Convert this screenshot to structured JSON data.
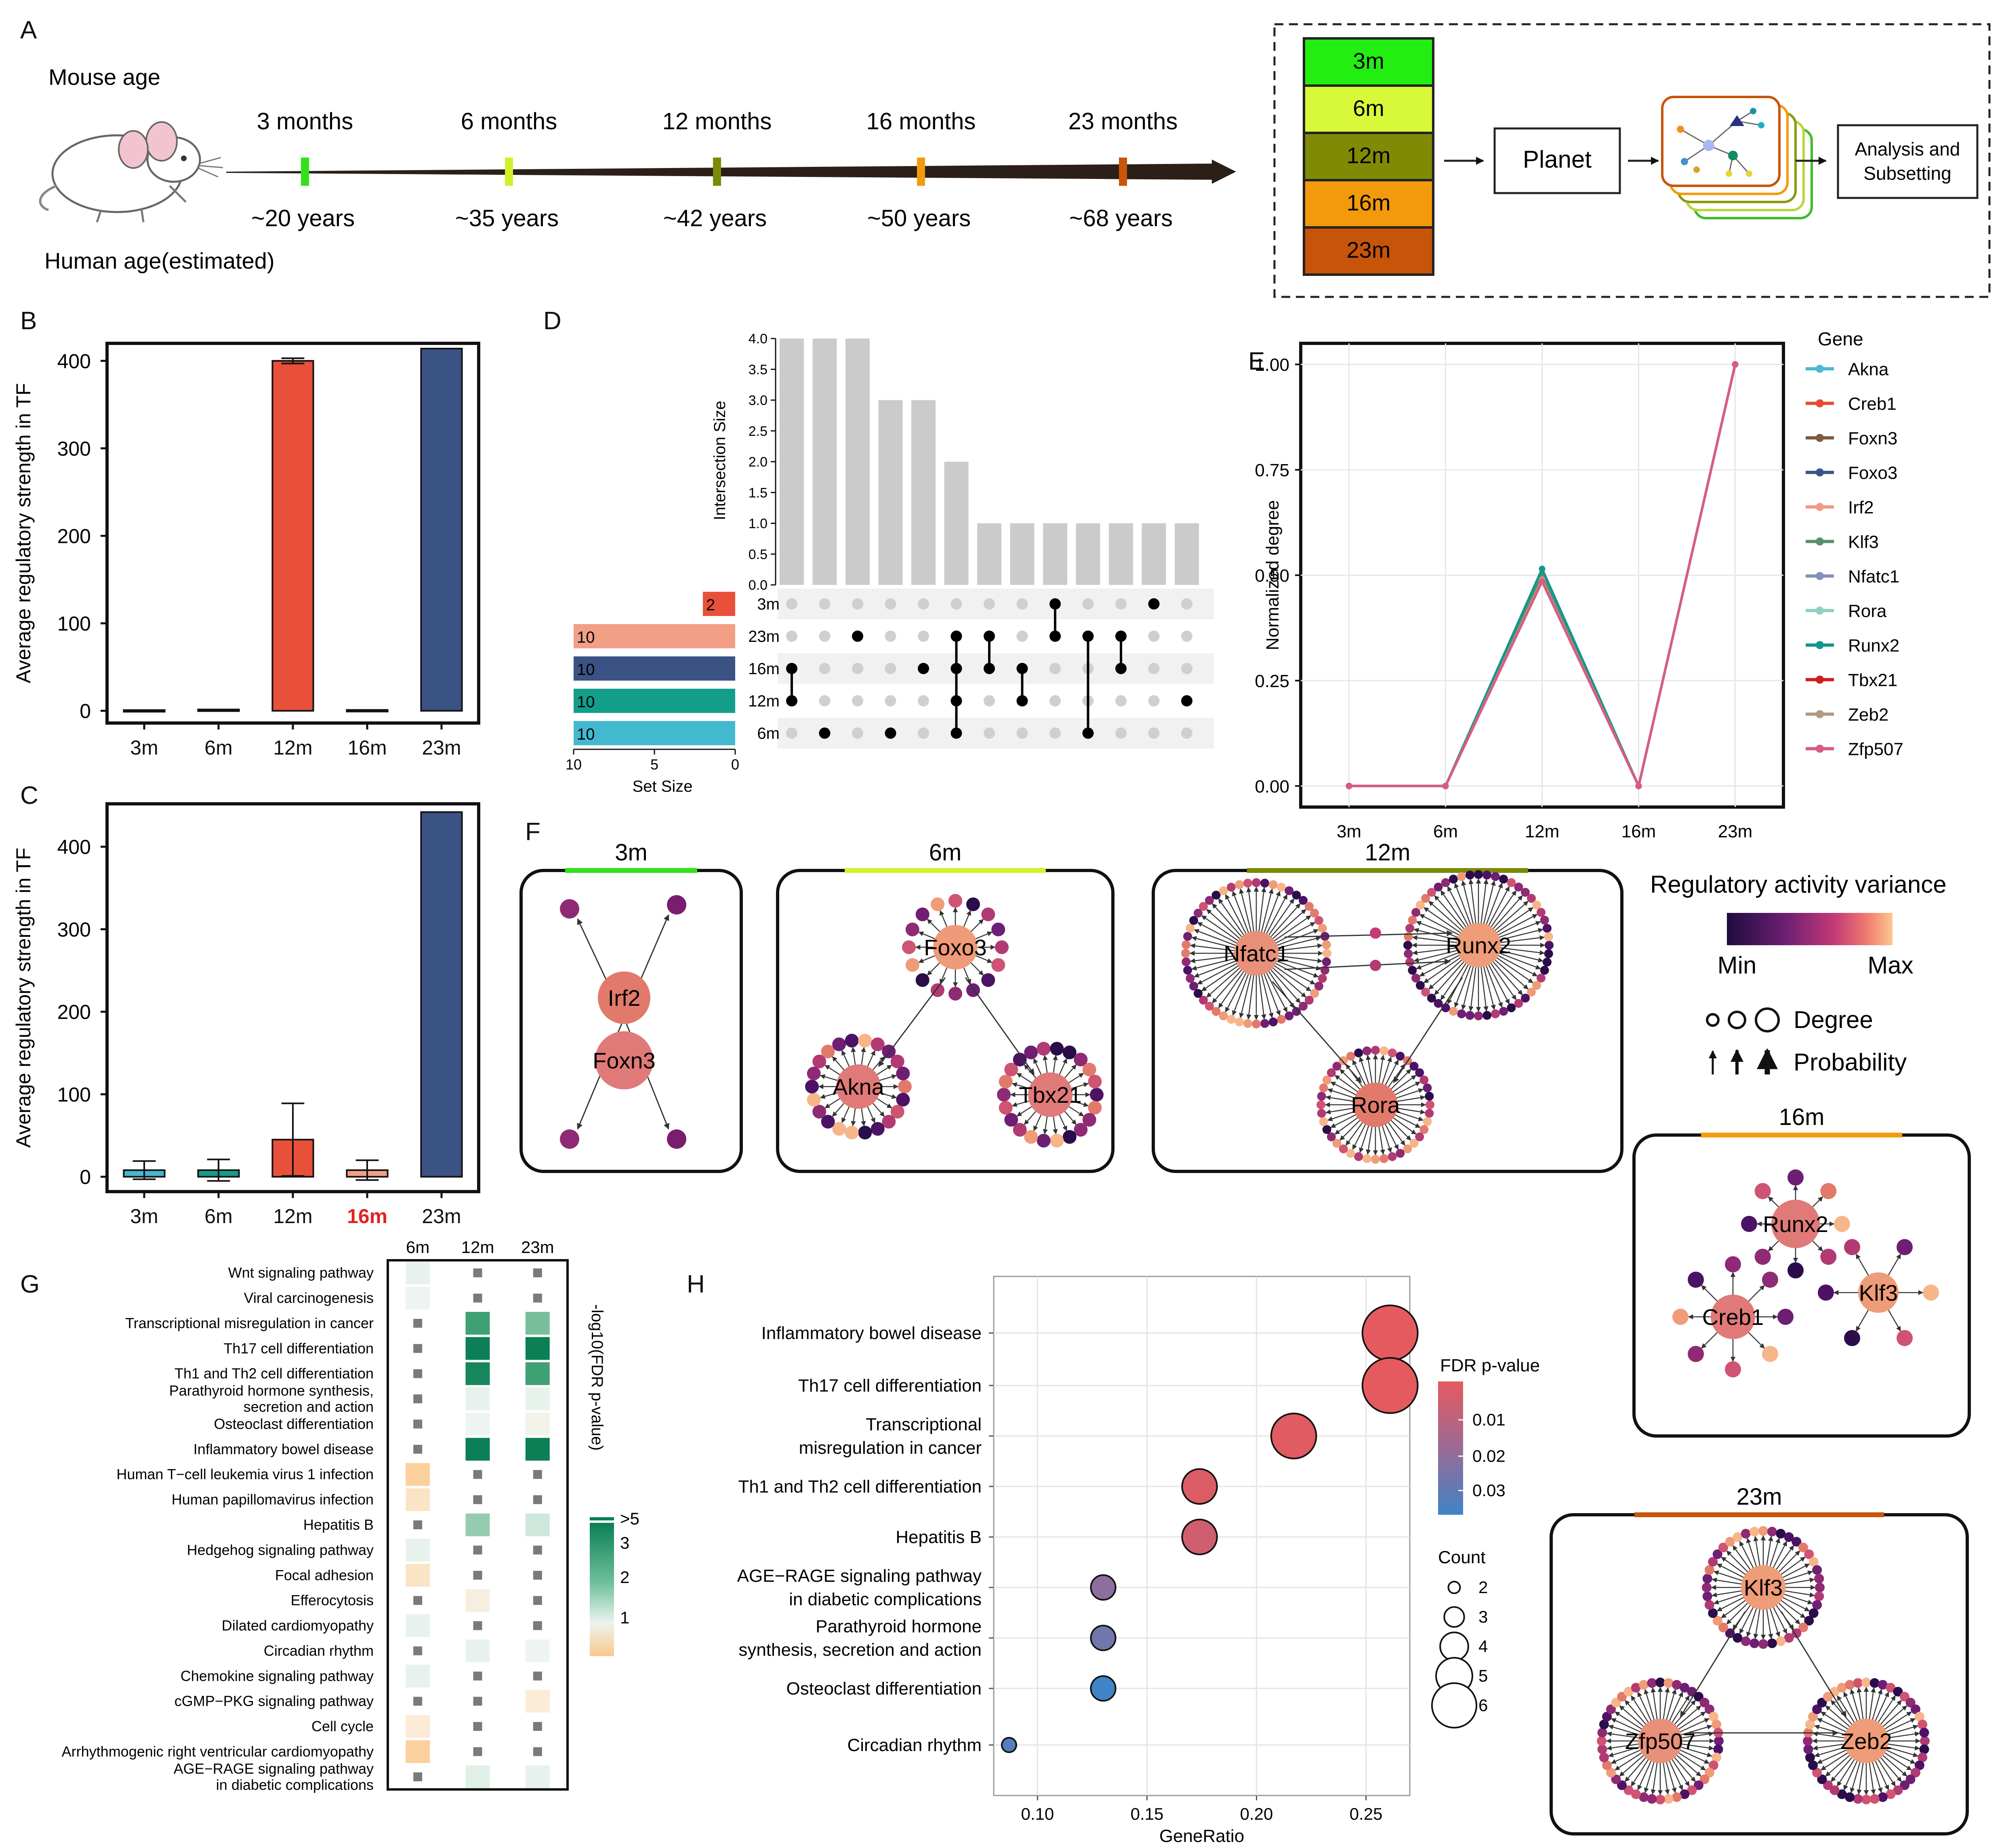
{
  "panel_labels": {
    "a": "A",
    "b": "B",
    "c": "C",
    "d": "D",
    "e": "E",
    "f": "F",
    "g": "G",
    "h": "H"
  },
  "panel_a": {
    "mouse_age_label": "Mouse age",
    "human_age_label": "Human age(estimated)",
    "timepoints": [
      {
        "mouse": "3 months",
        "human": "~20 years",
        "color": "#33e11b"
      },
      {
        "mouse": "6 months",
        "human": "~35 years",
        "color": "#d4f02a"
      },
      {
        "mouse": "12 months",
        "human": "~42 years",
        "color": "#7a8a06"
      },
      {
        "mouse": "16 months",
        "human": "~50 years",
        "color": "#f29b10"
      },
      {
        "mouse": "23 months",
        "human": "~68 years",
        "color": "#c8550a"
      }
    ],
    "pipeline": {
      "stack": [
        {
          "label": "3m",
          "color": "#22ee11"
        },
        {
          "label": "6m",
          "color": "#d8f83a"
        },
        {
          "label": "12m",
          "color": "#808a05"
        },
        {
          "label": "16m",
          "color": "#f39a0c"
        },
        {
          "label": "23m",
          "color": "#c8540a"
        }
      ],
      "planet_label": "Planet",
      "analysis_label_1": "Analysis and",
      "analysis_label_2": "Subsetting"
    }
  },
  "chart_data": [
    {
      "id": "B",
      "type": "bar",
      "title": "",
      "xlabel": "",
      "ylabel": "Average regulatory strength in TF",
      "categories": [
        "3m",
        "6m",
        "12m",
        "16m",
        "23m"
      ],
      "values": [
        0.8,
        1.5,
        400,
        1.0,
        414
      ],
      "error": [
        0,
        0,
        3,
        0,
        0
      ],
      "colors": [
        "#43b9cf",
        "#129e8a",
        "#e8503a",
        "#f29f86",
        "#3b5285"
      ],
      "ylim": [
        -14,
        420
      ],
      "yticks": [
        0,
        100,
        200,
        300,
        400
      ]
    },
    {
      "id": "C",
      "type": "bar",
      "title": "",
      "xlabel": "",
      "ylabel": "Average regulatory strength in TF",
      "categories": [
        "3m",
        "6m",
        "12m",
        "16m",
        "23m"
      ],
      "values": [
        8,
        8,
        45,
        8,
        442
      ],
      "error": [
        11,
        13,
        44,
        12,
        0
      ],
      "colors": [
        "#43b9cf",
        "#129e8a",
        "#e8503a",
        "#f29f86",
        "#3b5285"
      ],
      "highlight_category": "16m",
      "highlight_color": "#e32222",
      "ylim": [
        -18,
        452
      ],
      "yticks": [
        0,
        100,
        200,
        300,
        400
      ]
    },
    {
      "id": "D",
      "type": "upset",
      "ylabel": "Intersection Size",
      "xlabel_sets": "Set Size",
      "intersection_sizes": [
        4,
        4,
        4,
        3,
        3,
        2,
        1,
        1,
        1,
        1,
        1,
        1,
        1
      ],
      "intersection_ticks": [
        "0.0",
        "0.5",
        "1.0",
        "1.5",
        "2.0",
        "2.5",
        "3.0",
        "3.5",
        "4.0"
      ],
      "sets": [
        {
          "name": "3m",
          "size": 2,
          "color": "#e8503a"
        },
        {
          "name": "23m",
          "size": 10,
          "color": "#f29f86"
        },
        {
          "name": "16m",
          "size": 10,
          "color": "#3b5285"
        },
        {
          "name": "12m",
          "size": 10,
          "color": "#129e8a"
        },
        {
          "name": "6m",
          "size": 10,
          "color": "#43b9cf"
        }
      ],
      "set_size_ticks": [
        "10",
        "5",
        "0"
      ],
      "matrix": [
        [
          2,
          3
        ],
        [
          4
        ],
        [
          1
        ],
        [
          4
        ],
        [
          2
        ],
        [
          1,
          2,
          3,
          4
        ],
        [
          1,
          2
        ],
        [
          2,
          3
        ],
        [
          0,
          1
        ],
        [
          1,
          4
        ],
        [
          1,
          2
        ],
        [
          0
        ],
        [
          3
        ]
      ]
    },
    {
      "id": "E",
      "type": "line",
      "xlabel": "",
      "ylabel": "Normalized degree",
      "categories": [
        "3m",
        "6m",
        "12m",
        "16m",
        "23m"
      ],
      "yticks": [
        "0.00",
        "0.25",
        "0.50",
        "0.75",
        "1.00"
      ],
      "ylim": [
        -0.05,
        1.05
      ],
      "series": [
        {
          "name": "Akna",
          "color": "#4ab9d3",
          "values": [
            0,
            0,
            0.49,
            0,
            1
          ]
        },
        {
          "name": "Creb1",
          "color": "#e64c34",
          "values": [
            0,
            0,
            0.49,
            0,
            1
          ]
        },
        {
          "name": "Foxn3",
          "color": "#7d5b3c",
          "values": [
            0,
            0,
            0.49,
            0,
            1
          ]
        },
        {
          "name": "Foxo3",
          "color": "#3c538a",
          "values": [
            0,
            0,
            0.5,
            0,
            1
          ]
        },
        {
          "name": "Irf2",
          "color": "#f39a82",
          "values": [
            0,
            0,
            0.49,
            0,
            1
          ]
        },
        {
          "name": "Klf3",
          "color": "#5a8f6c",
          "values": [
            0,
            0,
            0.5,
            0,
            1
          ]
        },
        {
          "name": "Nfatc1",
          "color": "#8790b8",
          "values": [
            0,
            0,
            0.49,
            0,
            1
          ]
        },
        {
          "name": "Rora",
          "color": "#8fd1c1",
          "values": [
            0,
            0,
            0.49,
            0,
            1
          ]
        },
        {
          "name": "Runx2",
          "color": "#13978c",
          "values": [
            0,
            0,
            0.515,
            0,
            1
          ]
        },
        {
          "name": "Tbx21",
          "color": "#d21c1c",
          "values": [
            0,
            0,
            0.49,
            0,
            1
          ]
        },
        {
          "name": "Zeb2",
          "color": "#b09a82",
          "values": [
            0,
            0,
            0.49,
            0,
            1
          ]
        },
        {
          "name": "Zfp507",
          "color": "#d95b82",
          "values": [
            0,
            0,
            0.485,
            0,
            1
          ]
        }
      ],
      "legend_title": "Gene"
    },
    {
      "id": "G",
      "type": "heatmap",
      "legend_title": "-log10(FDR p-value)",
      "columns": [
        "6m",
        "12m",
        "23m"
      ],
      "legend_ticks": [
        ">5",
        "3",
        "2",
        "1"
      ],
      "rows": [
        {
          "term": "Wnt signaling pathway",
          "values": [
            1.6,
            null,
            null
          ]
        },
        {
          "term": "Viral carcinogenesis",
          "values": [
            1.5,
            null,
            null
          ]
        },
        {
          "term": "Transcriptional misregulation in cancer",
          "values": [
            null,
            3.0,
            2.6
          ]
        },
        {
          "term": "Th17 cell differentiation",
          "values": [
            null,
            3.5,
            3.5
          ]
        },
        {
          "term": "Th1 and Th2 cell differentiation",
          "values": [
            null,
            3.4,
            3.0
          ]
        },
        {
          "term": "Parathyroid hormone synthesis, secretion and action",
          "values": [
            null,
            1.6,
            1.6
          ]
        },
        {
          "term": "Osteoclast differentiation",
          "values": [
            null,
            1.5,
            1.4
          ]
        },
        {
          "term": "Inflammatory bowel disease",
          "values": [
            null,
            3.5,
            3.5
          ]
        },
        {
          "term": "Human T-cell leukemia virus 1 infection",
          "values": [
            0.6,
            null,
            null
          ]
        },
        {
          "term": "Human papillomavirus infection",
          "values": [
            0.9,
            null,
            null
          ]
        },
        {
          "term": "Hepatitis B",
          "values": [
            null,
            2.4,
            2.0
          ]
        },
        {
          "term": "Hedgehog signaling pathway",
          "values": [
            1.6,
            null,
            null
          ]
        },
        {
          "term": "Focal adhesion",
          "values": [
            0.9,
            null,
            null
          ]
        },
        {
          "term": "Efferocytosis",
          "values": [
            null,
            1.2,
            null
          ]
        },
        {
          "term": "Dilated cardiomyopathy",
          "values": [
            1.6,
            null,
            null
          ]
        },
        {
          "term": "Circadian rhythm",
          "values": [
            null,
            1.6,
            1.5
          ]
        },
        {
          "term": "Chemokine signaling pathway",
          "values": [
            1.6,
            null,
            null
          ]
        },
        {
          "term": "cGMP-PKG signaling pathway",
          "values": [
            null,
            null,
            1.05
          ]
        },
        {
          "term": "Cell cycle",
          "values": [
            1.05,
            null,
            null
          ]
        },
        {
          "term": "Arrhythmogenic right ventricular cardiomyopathy",
          "values": [
            0.6,
            null,
            null
          ]
        },
        {
          "term": "AGE-RAGE signaling pathway in diabetic complications",
          "values": [
            null,
            1.7,
            1.6
          ]
        }
      ]
    },
    {
      "id": "H",
      "type": "scatter",
      "xlabel": "GeneRatio",
      "ylabel": "",
      "xticks": [
        "0.10",
        "0.15",
        "0.20",
        "0.25"
      ],
      "xlim": [
        0.08,
        0.27
      ],
      "points": [
        {
          "term": "Inflammatory bowel disease",
          "x": 0.261,
          "count": 6,
          "fdr": 0.003
        },
        {
          "term": "Th17 cell differentiation",
          "x": 0.261,
          "count": 6,
          "fdr": 0.003
        },
        {
          "term": "Transcriptional misregulation in cancer",
          "x": 0.217,
          "count": 5,
          "fdr": 0.004
        },
        {
          "term": "Th1 and Th2 cell differentiation",
          "x": 0.174,
          "count": 4,
          "fdr": 0.005
        },
        {
          "term": "Hepatitis B",
          "x": 0.174,
          "count": 4,
          "fdr": 0.008
        },
        {
          "term": "AGE-RAGE signaling pathway in diabetic complications",
          "x": 0.13,
          "count": 3,
          "fdr": 0.022
        },
        {
          "term": "Parathyroid hormone synthesis, secretion and action",
          "x": 0.13,
          "count": 3,
          "fdr": 0.027
        },
        {
          "term": "Osteoclast differentiation",
          "x": 0.13,
          "count": 3,
          "fdr": 0.036
        },
        {
          "term": "Circadian rhythm",
          "x": 0.087,
          "count": 2,
          "fdr": 0.032
        }
      ],
      "color_legend_title": "FDR p-value",
      "color_ticks": [
        "0.01",
        "0.02",
        "0.03"
      ],
      "size_legend_title": "Count",
      "size_ticks": [
        "2",
        "3",
        "4",
        "5",
        "6"
      ]
    }
  ],
  "panel_h_labels": [
    [
      "Inflammatory bowel disease"
    ],
    [
      "Th17 cell differentiation"
    ],
    [
      "Transcriptional",
      "misregulation in cancer"
    ],
    [
      "Th1 and Th2 cell differentiation"
    ],
    [
      "Hepatitis B"
    ],
    [
      "AGE−RAGE signaling pathway",
      "in diabetic complications"
    ],
    [
      "Parathyroid hormone",
      "synthesis, secretion and action"
    ],
    [
      "Osteoclast differentiation"
    ],
    [
      "Circadian rhythm"
    ]
  ],
  "panel_g_labels": [
    [
      "Wnt signaling pathway"
    ],
    [
      "Viral carcinogenesis"
    ],
    [
      "Transcriptional misregulation in cancer"
    ],
    [
      "Th17 cell differentiation"
    ],
    [
      "Th1 and Th2 cell differentiation"
    ],
    [
      "Parathyroid hormone synthesis,",
      "secretion and action"
    ],
    [
      "Osteoclast differentiation"
    ],
    [
      "Inflammatory bowel disease"
    ],
    [
      "Human T−cell leukemia virus 1 infection"
    ],
    [
      "Human papillomavirus infection"
    ],
    [
      "Hepatitis B"
    ],
    [
      "Hedgehog signaling pathway"
    ],
    [
      "Focal adhesion"
    ],
    [
      "Efferocytosis"
    ],
    [
      "Dilated cardiomyopathy"
    ],
    [
      "Circadian rhythm"
    ],
    [
      "Chemokine signaling pathway"
    ],
    [
      "cGMP−PKG signaling pathway"
    ],
    [
      "Cell cycle"
    ],
    [
      "Arrhythmogenic right ventricular cardiomyopathy"
    ],
    [
      "AGE−RAGE signaling pathway",
      "in diabetic complications"
    ]
  ],
  "panel_f": {
    "legend_title": "Regulatory activity variance",
    "legend_min": "Min",
    "legend_max": "Max",
    "degree_label": "Degree",
    "probability_label": "Probability",
    "networks": [
      {
        "title": "3m",
        "color": "#33e11b",
        "hubs": [
          "Irf2",
          "Foxn3"
        ]
      },
      {
        "title": "6m",
        "color": "#d4f02a",
        "hubs": [
          "Foxo3",
          "Akna",
          "Tbx21"
        ]
      },
      {
        "title": "12m",
        "color": "#7a8a06",
        "hubs": [
          "Nfatc1",
          "Runx2",
          "Rora"
        ]
      },
      {
        "title": "16m",
        "color": "#f29b10",
        "hubs": [
          "Runx2",
          "Creb1",
          "Klf3"
        ]
      },
      {
        "title": "23m",
        "color": "#c8550a",
        "hubs": [
          "Klf3",
          "Zfp507",
          "Zeb2"
        ]
      }
    ]
  }
}
